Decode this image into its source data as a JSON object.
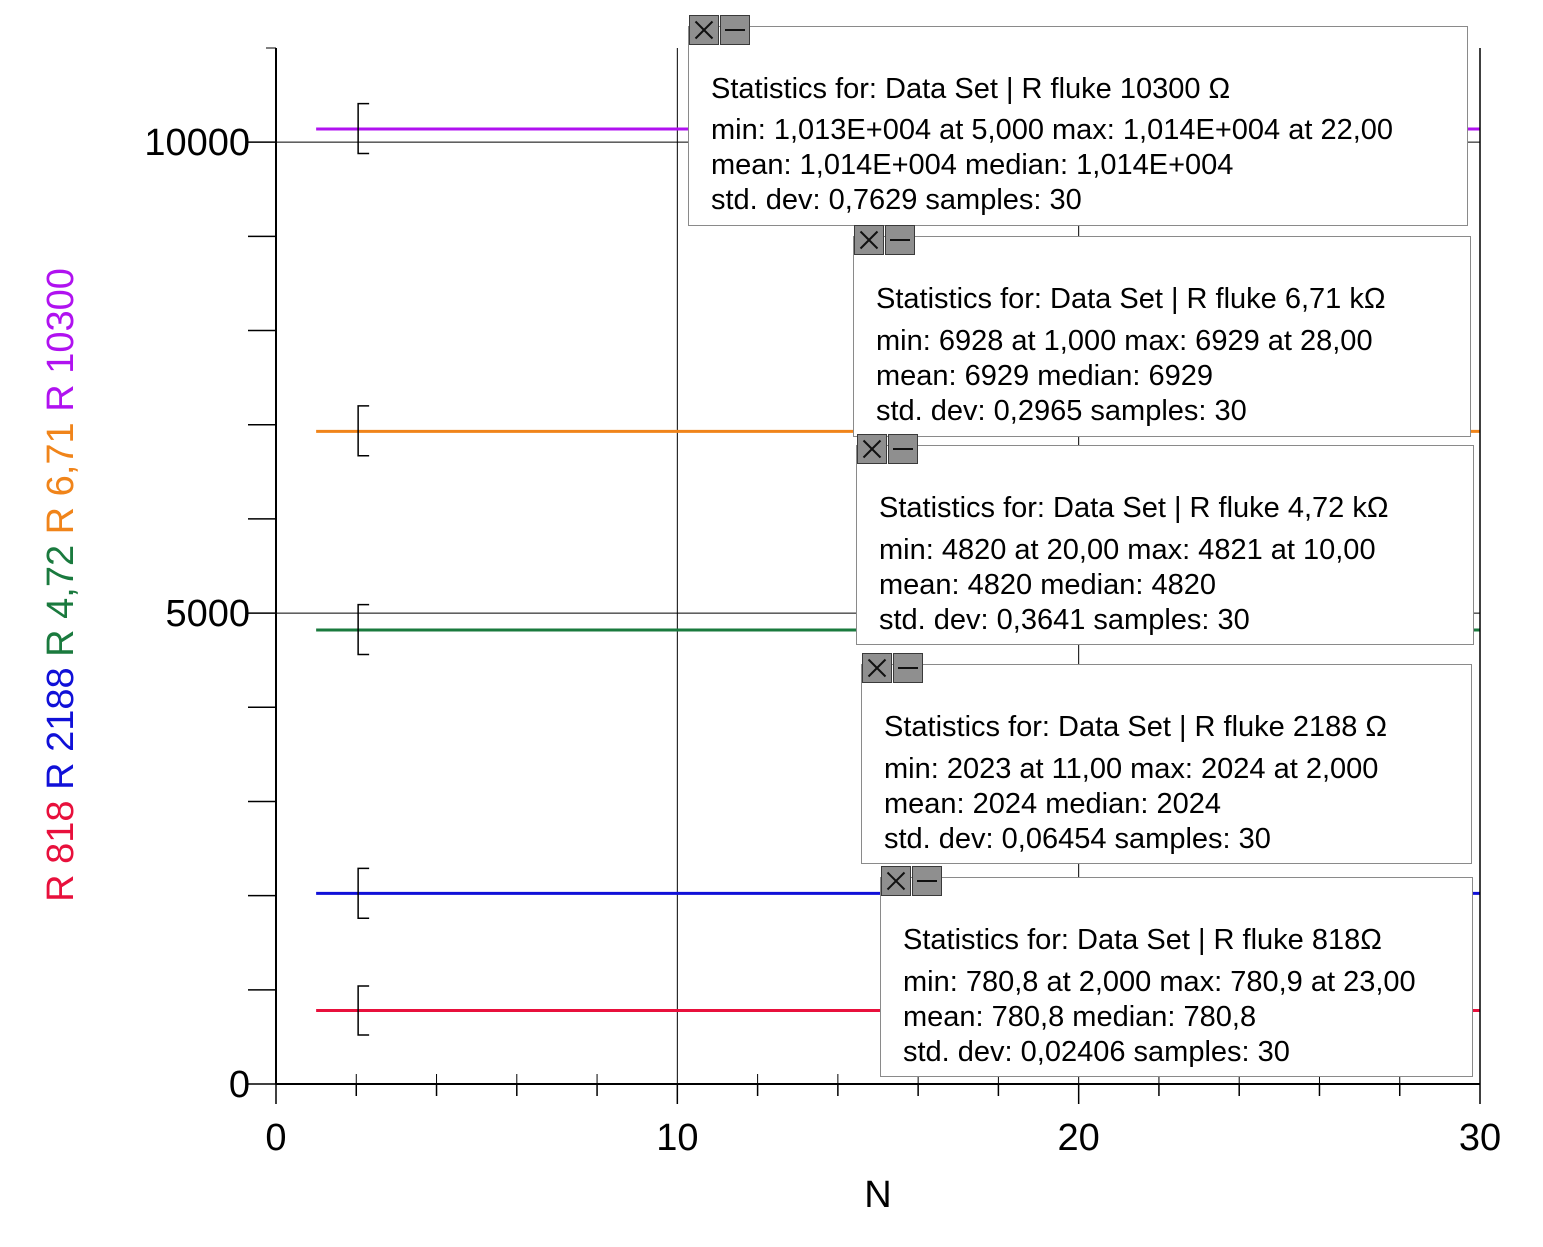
{
  "chart_data": {
    "type": "line",
    "xlabel": "N",
    "xlim": [
      0,
      30
    ],
    "ylim": [
      0,
      11000
    ],
    "x_ticks": [
      0,
      10,
      20,
      30
    ],
    "y_ticks": [
      0,
      5000,
      10000
    ],
    "y_tick_labels": [
      "0",
      "5000",
      "10000"
    ],
    "x_tick_labels": [
      "0",
      "10",
      "20",
      "30"
    ],
    "grid": "major-x and major-y lines",
    "series": [
      {
        "name": "R 818",
        "color": "#e8103c",
        "x_start": 1,
        "x_end": 30,
        "value": 780.8,
        "errorbar_low": 520,
        "errorbar_high": 1040
      },
      {
        "name": "R 2188",
        "color": "#1010d8",
        "x_start": 1,
        "x_end": 30,
        "value": 2024,
        "errorbar_low": 1760,
        "errorbar_high": 2290
      },
      {
        "name": "R 4,72",
        "color": "#1a7a3e",
        "x_start": 1,
        "x_end": 30,
        "value": 4820,
        "errorbar_low": 4560,
        "errorbar_high": 5090
      },
      {
        "name": "R 6,71",
        "color": "#f0841a",
        "x_start": 1,
        "x_end": 30,
        "value": 6929,
        "errorbar_low": 6670,
        "errorbar_high": 7200
      },
      {
        "name": "R 10300",
        "color": "#b012f0",
        "x_start": 1,
        "x_end": 30,
        "value": 10140,
        "errorbar_low": 9880,
        "errorbar_high": 10410
      }
    ],
    "ylegend": [
      {
        "text": "R 818",
        "color": "#e8103c"
      },
      {
        "text": "R 2188",
        "color": "#1010d8"
      },
      {
        "text": "R 4,72",
        "color": "#1a7a3e"
      },
      {
        "text": "R 6,71",
        "color": "#f0841a"
      },
      {
        "text": "R 10300",
        "color": "#b012f0"
      }
    ],
    "annotations": [
      {
        "lines": [
          "Statistics for: Data Set | R fluke 10300 Ω",
          "min: 1,013E+004 at 5,000 max: 1,014E+004 at 22,00",
          "mean: 1,014E+004 median: 1,014E+004",
          "std. dev: 0,7629 samples: 30"
        ]
      },
      {
        "lines": [
          "Statistics for: Data Set | R fluke 6,71 kΩ",
          "min: 6928 at 1,000 max: 6929 at 28,00",
          "mean: 6929 median: 6929",
          "std. dev: 0,2965 samples: 30"
        ]
      },
      {
        "lines": [
          "Statistics for: Data Set | R fluke 4,72 kΩ",
          "min: 4820 at 20,00 max: 4821 at 10,00",
          "mean: 4820 median: 4820",
          "std. dev: 0,3641 samples: 30"
        ]
      },
      {
        "lines": [
          "Statistics for: Data Set | R fluke 2188 Ω",
          "min: 2023 at 11,00 max: 2024 at 2,000",
          "mean: 2024 median: 2024",
          "std. dev: 0,06454 samples: 30"
        ]
      },
      {
        "lines": [
          "Statistics for: Data Set | R fluke 818Ω",
          "min: 780,8 at 2,000 max: 780,9 at 23,00",
          "mean: 780,8 median: 780,8",
          "std. dev: 0,02406 samples: 30"
        ]
      }
    ]
  }
}
